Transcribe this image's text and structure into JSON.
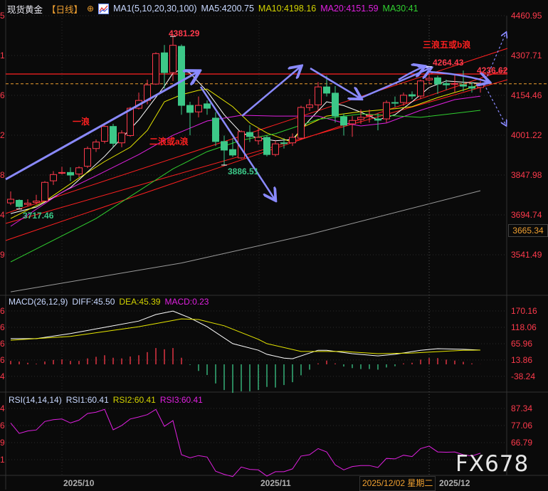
{
  "header": {
    "symbol": "现货黄金",
    "period": "【日线】",
    "settings_icon": "crosshair-circle-icon",
    "ma_icon": "indicator-chart-icon",
    "ma_name": "MA1(5,10,20,30,100)",
    "ma5": "MA5:4200.75",
    "ma10": "MA10:4198.16",
    "ma20": "MA20:4151.59",
    "ma30": "MA30:41"
  },
  "macd_header": {
    "name": "MACD(26,12,9)",
    "diff": "DIFF:45.50",
    "dea": "DEA:45.39",
    "macd": "MACD:0.23"
  },
  "rsi_header": {
    "name": "RSI(14,14,14)",
    "rsi1": "RSI1:60.41",
    "rsi2": "RSI2:60.41",
    "rsi3": "RSI3:60.41"
  },
  "left_axis_fragments": {
    "price": [
      "5",
      "1",
      "6",
      "2",
      "8",
      "4",
      "9"
    ],
    "macd": [
      "6",
      "6",
      "6",
      "6",
      "4"
    ],
    "rsi": [
      "4",
      "6",
      "9",
      "1"
    ]
  },
  "current_price_label": "3665.34",
  "crosshair_date": "2025/12/02 星期二",
  "watermark": "FX678",
  "colors": {
    "up": "#ff3a4c",
    "down": "#3cc888",
    "ma5": "#ffffff",
    "ma10": "#e8e800",
    "ma20": "#e020e0",
    "ma30": "#30d030",
    "ma100": "#9a9a9a",
    "arrow": "#8a8aff",
    "trend": "#ff2020",
    "dash": "#f0a030"
  },
  "annotations": {
    "wave1": "一浪",
    "wave2": "二浪或a浪",
    "wave3": "三浪五或b浪",
    "high_label": "4381.29",
    "low_label": "3886.51",
    "start_low_label": "3717.46",
    "recent_high_label": "4264.43",
    "resistance_label": "4236.62"
  },
  "chart_data": [
    {
      "type": "candlestick",
      "title": "现货黄金 日线",
      "x_ticks": [
        "2025/10",
        "2025/11",
        "2025/12"
      ],
      "y_ticks": [
        "4460.95",
        "4307.71",
        "4154.46",
        "4001.22",
        "3847.98",
        "3694.74",
        "3541.49"
      ],
      "ylim": [
        3400,
        4480
      ],
      "resistance_level": 4236.62,
      "last_price": 4199,
      "ohlc": [
        [
          3741,
          3785,
          3733,
          3755
        ],
        [
          3751,
          3755,
          3717.46,
          3727
        ],
        [
          3735,
          3755,
          3728,
          3740
        ],
        [
          3743,
          3772,
          3735,
          3748
        ],
        [
          3748,
          3825,
          3745,
          3820
        ],
        [
          3826,
          3863,
          3810,
          3850
        ],
        [
          3855,
          3880,
          3850,
          3858
        ],
        [
          3858,
          3878,
          3825,
          3848
        ],
        [
          3852,
          3882,
          3840,
          3876
        ],
        [
          3882,
          3958,
          3875,
          3950
        ],
        [
          3950,
          3985,
          3937,
          3975
        ],
        [
          3978,
          4040,
          3970,
          4035
        ],
        [
          4035,
          4045,
          3956,
          3970
        ],
        [
          3972,
          4020,
          3955,
          4010
        ],
        [
          4000,
          4110,
          3995,
          4105
        ],
        [
          4105,
          4165,
          4100,
          4135
        ],
        [
          4135,
          4215,
          4120,
          4195
        ],
        [
          4198,
          4320,
          4195,
          4315
        ],
        [
          4318,
          4348,
          4180,
          4242
        ],
        [
          4242,
          4381.29,
          4210,
          4347
        ],
        [
          4343,
          4350,
          4080,
          4116
        ],
        [
          4116,
          4130,
          4001,
          4089
        ],
        [
          4091,
          4150,
          4070,
          4116
        ],
        [
          4122,
          4135,
          4080,
          4105
        ],
        [
          4067,
          4090,
          3960,
          3977
        ],
        [
          3977,
          4000,
          3886.51,
          3944
        ],
        [
          3946,
          3990,
          3918,
          3925
        ],
        [
          3914,
          4020,
          3910,
          4015
        ],
        [
          4012,
          4040,
          3975,
          3996
        ],
        [
          3980,
          4030,
          3965,
          3993
        ],
        [
          3993,
          4000,
          3920,
          3927
        ],
        [
          3927,
          3980,
          3920,
          3968
        ],
        [
          3972,
          3990,
          3950,
          3970
        ],
        [
          3972,
          4008,
          3960,
          3993
        ],
        [
          3990,
          4115,
          3985,
          4108
        ],
        [
          4108,
          4140,
          4095,
          4118
        ],
        [
          4118,
          4205,
          4095,
          4187
        ],
        [
          4187,
          4230,
          4150,
          4163
        ],
        [
          4163,
          4190,
          4050,
          4075
        ],
        [
          4072,
          4085,
          4000,
          4040
        ],
        [
          4045,
          4075,
          3995,
          4058
        ],
        [
          4062,
          4100,
          4045,
          4070
        ],
        [
          4078,
          4100,
          4050,
          4078
        ],
        [
          4064,
          4085,
          4020,
          4059
        ],
        [
          4064,
          4135,
          4050,
          4127
        ],
        [
          4127,
          4150,
          4110,
          4126
        ],
        [
          4127,
          4165,
          4115,
          4155
        ],
        [
          4157,
          4170,
          4140,
          4152
        ],
        [
          4152,
          4215,
          4140,
          4210
        ],
        [
          4214,
          4264.43,
          4195,
          4220
        ],
        [
          4222,
          4230,
          4160,
          4198
        ],
        [
          4200,
          4215,
          4175,
          4195
        ],
        [
          4198,
          4235,
          4165,
          4200
        ],
        [
          4195,
          4250,
          4170,
          4190
        ],
        [
          4188,
          4205,
          4165,
          4182
        ],
        [
          4185,
          4210,
          4165,
          4199
        ]
      ],
      "ma_series": [
        {
          "name": "MA5",
          "points": [
            [
              0,
              3700
            ],
            [
              3,
              3725
            ],
            [
              7,
              3800
            ],
            [
              11,
              3920
            ],
            [
              15,
              4060
            ],
            [
              18,
              4190
            ],
            [
              19,
              4240
            ],
            [
              20,
              4255
            ],
            [
              21,
              4240
            ],
            [
              23,
              4170
            ],
            [
              25,
              4080
            ],
            [
              27,
              4010
            ],
            [
              29,
              3990
            ],
            [
              31,
              3980
            ],
            [
              33,
              3985
            ],
            [
              35,
              4060
            ],
            [
              37,
              4130
            ],
            [
              39,
              4115
            ],
            [
              41,
              4090
            ],
            [
              43,
              4060
            ],
            [
              45,
              4080
            ],
            [
              47,
              4130
            ],
            [
              49,
              4185
            ],
            [
              51,
              4210
            ],
            [
              53,
              4205
            ],
            [
              55,
              4200.75
            ]
          ]
        },
        {
          "name": "MA10",
          "points": [
            [
              0,
              3681
            ],
            [
              4,
              3747
            ],
            [
              8,
              3837
            ],
            [
              11,
              3900
            ],
            [
              14,
              3955
            ],
            [
              16,
              4020
            ],
            [
              18,
              4130
            ],
            [
              20,
              4157
            ],
            [
              22,
              4174
            ],
            [
              23,
              4179
            ],
            [
              26,
              4111
            ],
            [
              28,
              4048
            ],
            [
              30,
              4010
            ],
            [
              33,
              3974
            ],
            [
              34,
              4029
            ],
            [
              37,
              4075
            ],
            [
              41,
              4092
            ],
            [
              45,
              4103
            ],
            [
              47,
              4111
            ],
            [
              50,
              4146
            ],
            [
              54,
              4185
            ],
            [
              55,
              4198.16
            ]
          ]
        },
        {
          "name": "MA20",
          "points": [
            [
              0,
              3651
            ],
            [
              6,
              3782
            ],
            [
              10,
              3845
            ],
            [
              15,
              3927
            ],
            [
              19,
              4001
            ],
            [
              23,
              4056
            ],
            [
              27,
              4078
            ],
            [
              31,
              4075
            ],
            [
              36,
              4075
            ],
            [
              39,
              4048
            ],
            [
              41,
              4037
            ],
            [
              44,
              4048
            ],
            [
              48,
              4097
            ],
            [
              52,
              4138
            ],
            [
              55,
              4151.59
            ]
          ]
        },
        {
          "name": "MA30",
          "points": [
            [
              0,
              3514
            ],
            [
              10,
              3681
            ],
            [
              19,
              3872
            ],
            [
              23,
              3938
            ],
            [
              27,
              3982
            ],
            [
              31,
              4007
            ],
            [
              36,
              4062
            ],
            [
              41,
              4083
            ],
            [
              48,
              4070
            ],
            [
              55,
              4097
            ]
          ]
        },
        {
          "name": "MA100",
          "points": [
            [
              0,
              3399
            ],
            [
              20,
              3510
            ],
            [
              35,
              3620
            ],
            [
              55,
              3788
            ]
          ]
        }
      ]
    },
    {
      "type": "macd",
      "y_ticks": [
        "170.16",
        "118.06",
        "65.96",
        "13.86",
        "-38.24"
      ],
      "histogram": [
        11,
        9,
        5,
        2,
        9,
        14,
        16,
        11,
        11,
        19,
        24,
        29,
        21,
        19,
        25,
        29,
        39,
        52,
        48,
        52,
        21,
        -2,
        -21,
        -34,
        -61,
        -82,
        -91,
        -86,
        -86,
        -82,
        -72,
        -74,
        -66,
        -57,
        -35,
        -17,
        3,
        12,
        3,
        -7,
        -12,
        -15,
        -15,
        -17,
        -10,
        -6,
        3,
        5,
        15,
        20,
        20,
        15,
        12,
        8,
        3,
        0.23
      ],
      "diff": [
        [
          0,
          82
        ],
        [
          3,
          82
        ],
        [
          7,
          98
        ],
        [
          11,
          118
        ],
        [
          15,
          138
        ],
        [
          17,
          159
        ],
        [
          19,
          170
        ],
        [
          21,
          148
        ],
        [
          23,
          120
        ],
        [
          26,
          66
        ],
        [
          29,
          45
        ],
        [
          30,
          32
        ],
        [
          32,
          20
        ],
        [
          33,
          18
        ],
        [
          36,
          45
        ],
        [
          37,
          45
        ],
        [
          40,
          34
        ],
        [
          43,
          27
        ],
        [
          45,
          32
        ],
        [
          48,
          45
        ],
        [
          50,
          50
        ],
        [
          53,
          48
        ],
        [
          55,
          45.5
        ]
      ],
      "dea": [
        [
          0,
          77
        ],
        [
          7,
          89
        ],
        [
          15,
          120
        ],
        [
          20,
          145
        ],
        [
          22,
          143
        ],
        [
          25,
          123
        ],
        [
          29,
          80
        ],
        [
          30,
          66
        ],
        [
          34,
          41
        ],
        [
          39,
          41
        ],
        [
          43,
          34
        ],
        [
          47,
          36
        ],
        [
          53,
          45
        ],
        [
          55,
          45.39
        ]
      ]
    },
    {
      "type": "line",
      "y_ticks": [
        "87.34",
        "77.06",
        "66.79",
        "56.51"
      ],
      "rsi": [
        78.6,
        72.3,
        73.8,
        74.4,
        79.5,
        80.6,
        81,
        78.6,
        80.3,
        84.3,
        85.1,
        86.8,
        74.5,
        77.1,
        81,
        82.2,
        83.6,
        86.8,
        76.6,
        80,
        59.5,
        57.7,
        59,
        58.1,
        49.6,
        47.7,
        46.4,
        52.1,
        50.7,
        50.4,
        46.7,
        49.3,
        49.3,
        51,
        58.7,
        59.5,
        63.2,
        61.2,
        53.4,
        50.4,
        52.4,
        53,
        53,
        51.8,
        57.3,
        57,
        59.2,
        58.4,
        63.2,
        64.7,
        61.2,
        61,
        61.2,
        59.5,
        58.7,
        60.41
      ]
    }
  ]
}
